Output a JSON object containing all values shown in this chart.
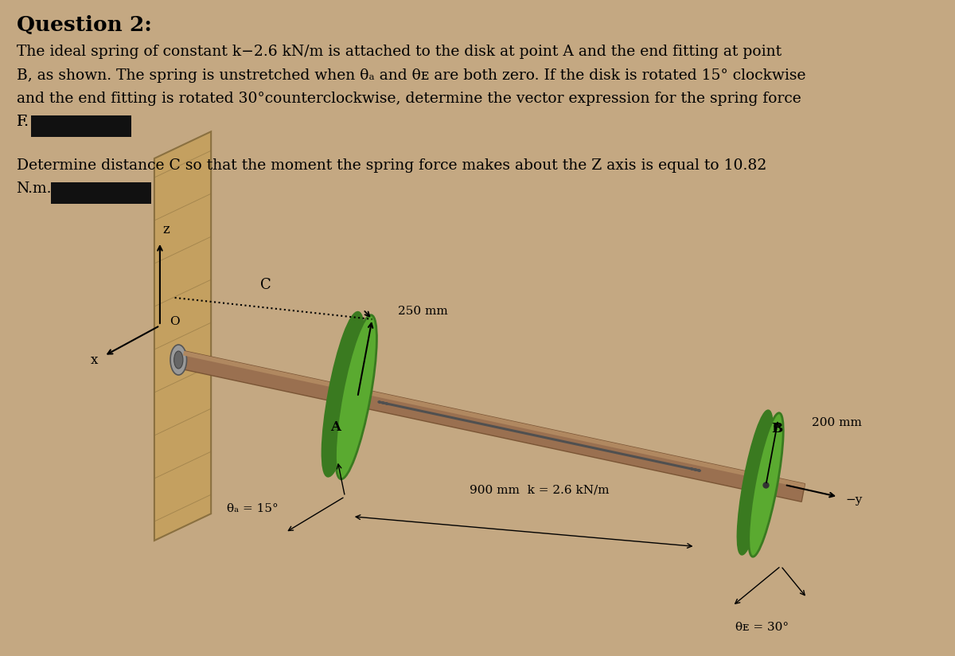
{
  "background_color": "#c4a882",
  "title": "Question 2:",
  "title_fontsize": 19,
  "paragraph1_line1": "The ideal spring of constant k−2.6 kN/m is attached to the disk at point A and the end fitting at point",
  "paragraph1_line2": "B, as shown. The spring is unstretched when θₐ and θᴇ are both zero. If the disk is rotated 15° clockwise",
  "paragraph1_line3": "and the end fitting is rotated 30°counterclockwise, determine the vector expression for the spring force",
  "paragraph1_line4": "F.",
  "paragraph2_line1": "Determine distance C so that the moment the spring force makes about the Z axis is equal to 10.82",
  "paragraph2_line2": "N.m.",
  "text_fontsize": 13.5,
  "redacted_color": "#111111",
  "wall_color": "#c4a060",
  "wall_line_color": "#8a7040",
  "shaft_color_dark": "#7a5535",
  "shaft_color_mid": "#9a7050",
  "shaft_color_light": "#b08860",
  "disk_green_dark": "#3a7a20",
  "disk_green_mid": "#5aaa30",
  "disk_green_light": "#7acc50",
  "spring_color": "#505050",
  "bearing_outer": "#888888",
  "bearing_inner": "#555555",
  "black": "#000000",
  "label_A": "A",
  "label_B": "B",
  "label_C": "C",
  "label_O": "O",
  "label_x": "x",
  "label_y": "−y",
  "label_z": "z",
  "label_250mm": "250 mm",
  "label_900mm": "900 mm  k = 2.6 kN/m",
  "label_200mm": "200 mm",
  "label_thetaA": "θₐ = 15°",
  "label_thetaB": "θᴇ = 30°"
}
